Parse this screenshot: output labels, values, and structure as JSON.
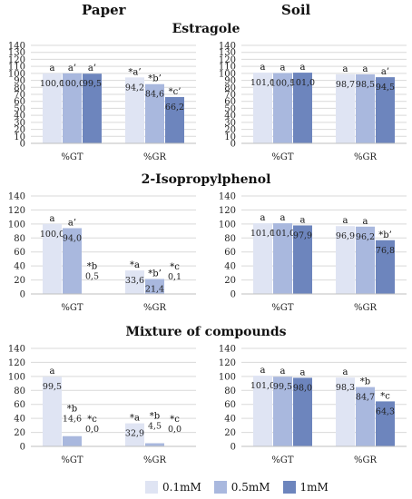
{
  "headers": {
    "left": "Paper",
    "right": "Soil"
  },
  "titles": [
    "Estragole",
    "2-Isopropylphenol",
    "Mixture of compounds"
  ],
  "legend": [
    {
      "label": "0.1mM",
      "color": "#dfe4f3"
    },
    {
      "label": "0.5mM",
      "color": "#a9b8de"
    },
    {
      "label": "1mM",
      "color": "#6d85bd"
    }
  ],
  "chart_data": [
    {
      "type": "bar",
      "section": "Estragole",
      "panel": "Paper",
      "categories": [
        "%GT",
        "%GR"
      ],
      "ylim": [
        0,
        140
      ],
      "yticks": [
        0,
        10,
        20,
        30,
        40,
        50,
        60,
        70,
        80,
        90,
        100,
        110,
        120,
        130,
        140
      ],
      "series": [
        {
          "name": "0.1mM",
          "values": [
            100.0,
            94.2
          ],
          "value_labels": [
            "100,0",
            "94,2"
          ],
          "letters": [
            "a",
            "*a’"
          ]
        },
        {
          "name": "0.5mM",
          "values": [
            100.0,
            84.6
          ],
          "value_labels": [
            "100,0",
            "84,6"
          ],
          "letters": [
            "a’",
            "*b’"
          ]
        },
        {
          "name": "1mM",
          "values": [
            99.5,
            66.2
          ],
          "value_labels": [
            "99,5",
            "66,2"
          ],
          "letters": [
            "a’",
            "*c’"
          ]
        }
      ]
    },
    {
      "type": "bar",
      "section": "Estragole",
      "panel": "Soil",
      "categories": [
        "%GT",
        "%GR"
      ],
      "ylim": [
        0,
        140
      ],
      "yticks": [
        0,
        10,
        20,
        30,
        40,
        50,
        60,
        70,
        80,
        90,
        100,
        110,
        120,
        130,
        140
      ],
      "series": [
        {
          "name": "0.1mM",
          "values": [
            101.0,
            98.7
          ],
          "value_labels": [
            "101,0",
            "98,7"
          ],
          "letters": [
            "a",
            "a"
          ]
        },
        {
          "name": "0.5mM",
          "values": [
            100.5,
            98.5
          ],
          "value_labels": [
            "100,5",
            "98,5"
          ],
          "letters": [
            "a",
            "a"
          ]
        },
        {
          "name": "1mM",
          "values": [
            101.0,
            94.5
          ],
          "value_labels": [
            "101,0",
            "94,5"
          ],
          "letters": [
            "a",
            "a’"
          ]
        }
      ]
    },
    {
      "type": "bar",
      "section": "2-Isopropylphenol",
      "panel": "Paper",
      "categories": [
        "%GT",
        "%GR"
      ],
      "ylim": [
        0,
        140
      ],
      "yticks": [
        0,
        20,
        40,
        60,
        80,
        100,
        120,
        140
      ],
      "series": [
        {
          "name": "0.1mM",
          "values": [
            100.0,
            33.6
          ],
          "value_labels": [
            "100,0",
            "33,6"
          ],
          "letters": [
            "a",
            "*a"
          ]
        },
        {
          "name": "0.5mM",
          "values": [
            94.0,
            21.4
          ],
          "value_labels": [
            "94,0",
            "21,4"
          ],
          "letters": [
            "a’",
            "*b’"
          ]
        },
        {
          "name": "1mM",
          "values": [
            0.5,
            0.1
          ],
          "value_labels": [
            "0,5",
            "0,1"
          ],
          "letters": [
            "*b",
            "*c"
          ]
        }
      ]
    },
    {
      "type": "bar",
      "section": "2-Isopropylphenol",
      "panel": "Soil",
      "categories": [
        "%GT",
        "%GR"
      ],
      "ylim": [
        0,
        140
      ],
      "yticks": [
        0,
        20,
        40,
        60,
        80,
        100,
        120,
        140
      ],
      "series": [
        {
          "name": "0.1mM",
          "values": [
            101.0,
            96.9
          ],
          "value_labels": [
            "101,0",
            "96,9"
          ],
          "letters": [
            "a",
            "a"
          ]
        },
        {
          "name": "0.5mM",
          "values": [
            101.0,
            96.2
          ],
          "value_labels": [
            "101,0",
            "96,2"
          ],
          "letters": [
            "a",
            "a"
          ]
        },
        {
          "name": "1mM",
          "values": [
            97.9,
            76.8
          ],
          "value_labels": [
            "97,9",
            "76,8"
          ],
          "letters": [
            "a",
            "*b’"
          ]
        }
      ]
    },
    {
      "type": "bar",
      "section": "Mixture of compounds",
      "panel": "Paper",
      "categories": [
        "%GT",
        "%GR"
      ],
      "ylim": [
        0,
        140
      ],
      "yticks": [
        0,
        20,
        40,
        60,
        80,
        100,
        120,
        140
      ],
      "series": [
        {
          "name": "0.1mM",
          "values": [
            99.5,
            32.9
          ],
          "value_labels": [
            "99,5",
            "32,9"
          ],
          "letters": [
            "a",
            "*a"
          ]
        },
        {
          "name": "0.5mM",
          "values": [
            14.6,
            4.5
          ],
          "value_labels": [
            "14,6",
            "4,5"
          ],
          "letters": [
            "*b",
            "*b"
          ]
        },
        {
          "name": "1mM",
          "values": [
            0.0,
            0.0
          ],
          "value_labels": [
            "0,0",
            "0,0"
          ],
          "letters": [
            "*c",
            "*c"
          ]
        }
      ]
    },
    {
      "type": "bar",
      "section": "Mixture of compounds",
      "panel": "Soil",
      "categories": [
        "%GT",
        "%GR"
      ],
      "ylim": [
        0,
        140
      ],
      "yticks": [
        0,
        20,
        40,
        60,
        80,
        100,
        120,
        140
      ],
      "series": [
        {
          "name": "0.1mM",
          "values": [
            101.0,
            98.3
          ],
          "value_labels": [
            "101,0",
            "98,3"
          ],
          "letters": [
            "a",
            "a"
          ]
        },
        {
          "name": "0.5mM",
          "values": [
            99.5,
            84.7
          ],
          "value_labels": [
            "99,5",
            "84,7"
          ],
          "letters": [
            "a",
            "*b"
          ]
        },
        {
          "name": "1mM",
          "values": [
            98.0,
            64.3
          ],
          "value_labels": [
            "98,0",
            "64,3"
          ],
          "letters": [
            "a",
            "*c"
          ]
        }
      ]
    }
  ]
}
